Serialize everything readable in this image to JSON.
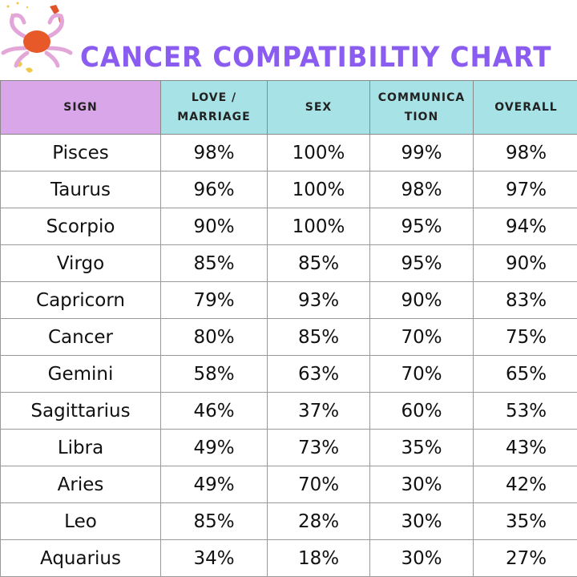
{
  "title": "CANCER COMPATIBILTIY CHART",
  "colors": {
    "title": "#8a5cf0",
    "sign_header": "#d9a6ea",
    "other_headers": "#a7e3e6"
  },
  "chart_data": {
    "type": "table",
    "title": "CANCER COMPATIBILTIY CHART",
    "columns": [
      "SIGN",
      "LOVE / MARRIAGE",
      "SEX",
      "COMMUNICA TION",
      "OVERALL"
    ],
    "rows": [
      [
        "Pisces",
        "98%",
        "100%",
        "99%",
        "98%"
      ],
      [
        "Taurus",
        "96%",
        "100%",
        "98%",
        "97%"
      ],
      [
        "Scorpio",
        "90%",
        "100%",
        "95%",
        "94%"
      ],
      [
        "Virgo",
        "85%",
        "85%",
        "95%",
        "90%"
      ],
      [
        "Capricorn",
        "79%",
        "93%",
        "90%",
        "83%"
      ],
      [
        "Cancer",
        "80%",
        "85%",
        "70%",
        "75%"
      ],
      [
        "Gemini",
        "58%",
        "63%",
        "70%",
        "65%"
      ],
      [
        "Sagittarius",
        "46%",
        "37%",
        "60%",
        "53%"
      ],
      [
        "Libra",
        "49%",
        "73%",
        "35%",
        "43%"
      ],
      [
        "Aries",
        "49%",
        "70%",
        "30%",
        "42%"
      ],
      [
        "Leo",
        "85%",
        "28%",
        "30%",
        "35%"
      ],
      [
        "Aquarius",
        "34%",
        "18%",
        "30%",
        "27%"
      ]
    ]
  }
}
